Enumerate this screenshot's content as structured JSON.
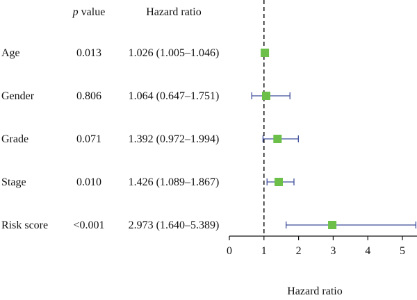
{
  "chart_data": {
    "type": "forest",
    "columns": {
      "pvalue_header_italic": "p",
      "pvalue_header_rest": " value",
      "hr_header": "Hazard ratio"
    },
    "xlabel": "Hazard ratio",
    "xlim": [
      0,
      5.4
    ],
    "xticks": [
      0,
      1,
      2,
      3,
      4,
      5
    ],
    "xtick_labels": [
      "0",
      "1",
      "2",
      "3",
      "4",
      "5"
    ],
    "reference_line": 1,
    "rows": [
      {
        "label": "Age",
        "pvalue": "0.013",
        "hr_text": "1.026 (1.005–1.046)",
        "hr": 1.026,
        "lo": 1.005,
        "hi": 1.046
      },
      {
        "label": "Gender",
        "pvalue": "0.806",
        "hr_text": "1.064 (0.647–1.751)",
        "hr": 1.064,
        "lo": 0.647,
        "hi": 1.751
      },
      {
        "label": "Grade",
        "pvalue": "0.071",
        "hr_text": "1.392 (0.972–1.994)",
        "hr": 1.392,
        "lo": 0.972,
        "hi": 1.994
      },
      {
        "label": "Stage",
        "pvalue": "0.010",
        "hr_text": "1.426 (1.089–1.867)",
        "hr": 1.426,
        "lo": 1.089,
        "hi": 1.867
      },
      {
        "label": "Risk score",
        "pvalue": "<0.001",
        "hr_text": "2.973 (1.640–5.389)",
        "hr": 2.973,
        "lo": 1.64,
        "hi": 5.389
      }
    ],
    "colors": {
      "marker": "#6cc04a",
      "whisker": "#3d4e9a",
      "reference": "#222222",
      "axis": "#111111"
    }
  }
}
